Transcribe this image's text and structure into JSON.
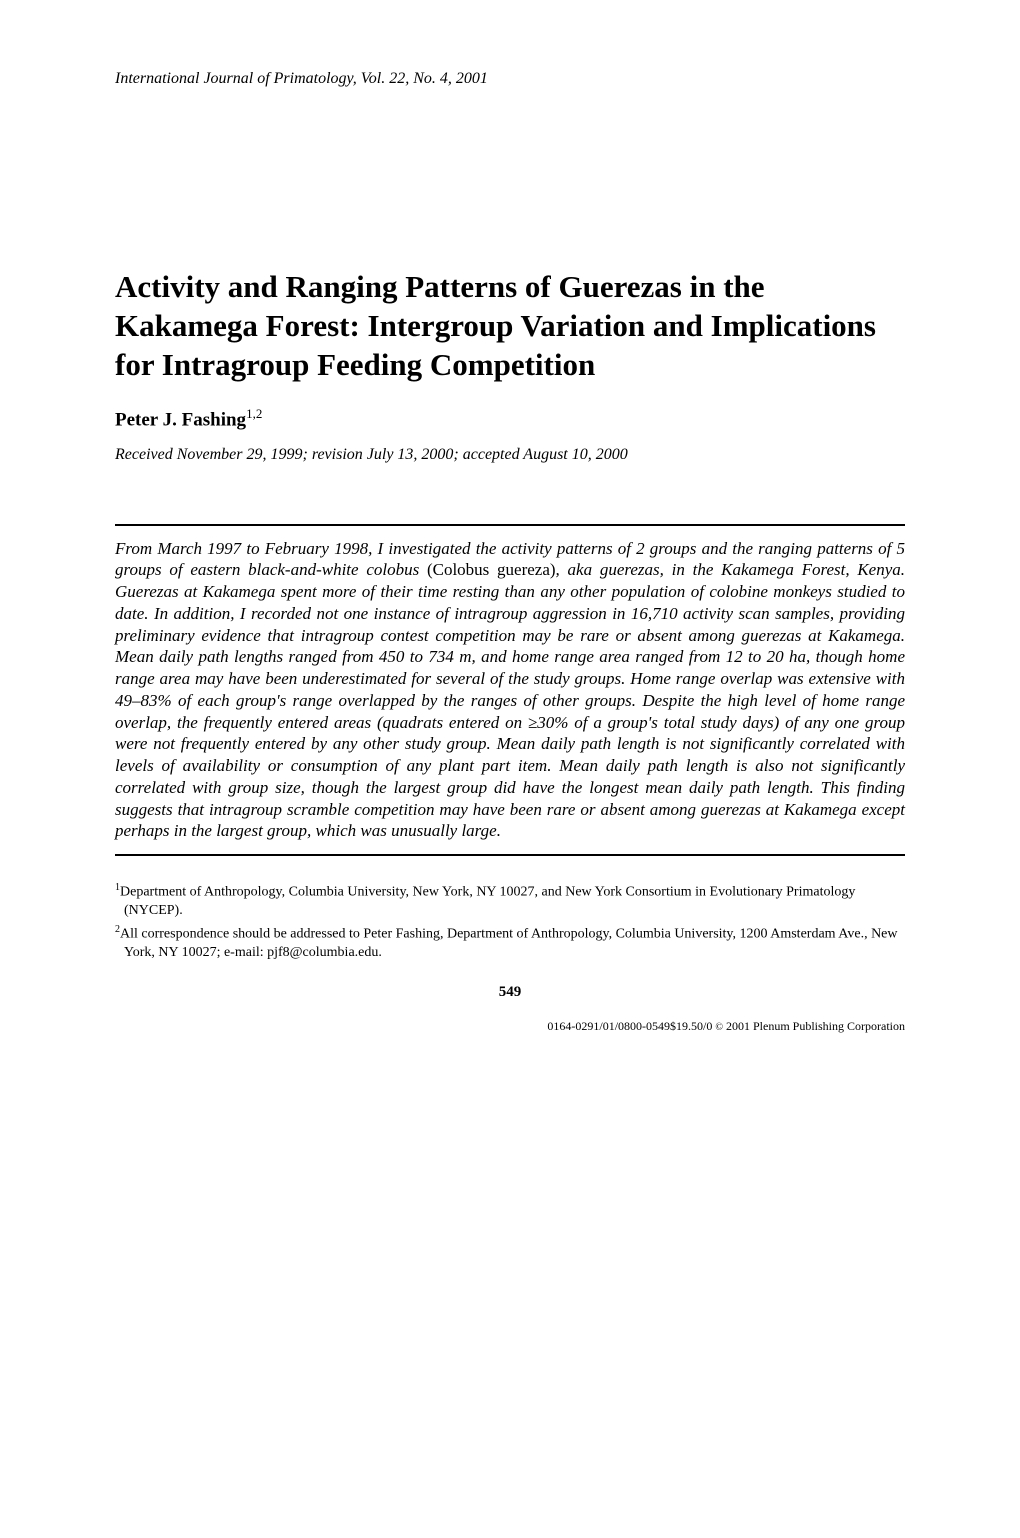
{
  "journal_header": "International Journal of Primatology, Vol. 22, No. 4, 2001",
  "title": "Activity and Ranging Patterns of Guerezas in the Kakamega Forest: Intergroup Variation and Implications for Intragroup Feeding Competition",
  "author": {
    "name": "Peter J. Fashing",
    "affiliations": "1,2"
  },
  "received": "Received November 29, 1999; revision July 13, 2000; accepted August 10, 2000",
  "abstract": {
    "part1": "From March 1997 to February 1998, I investigated the activity patterns of 2 groups and the ranging patterns of 5 groups of eastern black-and-white colobus ",
    "species": "(Colobus guereza)",
    "part2": ", aka guerezas, in the Kakamega Forest, Kenya. Guerezas at Kakamega spent more of their time resting than any other population of colobine monkeys studied to date. In addition, I recorded not one instance of intragroup aggression in 16,710 activity scan samples, providing preliminary evidence that intragroup contest competition may be rare or absent among guerezas at Kakamega. Mean daily path lengths ranged from 450 to 734 m, and home range area ranged from 12 to 20 ha, though home range area may have been underestimated for several of the study groups. Home range overlap was extensive with 49–83% of each group's range overlapped by the ranges of other groups. Despite the high level of home range overlap, the frequently entered areas (quadrats entered on ≥30% of a group's total study days) of any one group were not frequently entered by any other study group. Mean daily path length is not significantly correlated with levels of availability or consumption of any plant part item. Mean daily path length is also not significantly correlated with group size, though the largest group did have the longest mean daily path length. This finding suggests that intragroup scramble competition may have been rare or absent among guerezas at Kakamega except perhaps in the largest group, which was unusually large."
  },
  "footnotes": {
    "note1": {
      "num": "1",
      "text": "Department of Anthropology, Columbia University, New York, NY 10027, and New York Consortium in Evolutionary Primatology (NYCEP)."
    },
    "note2": {
      "num": "2",
      "text": "All correspondence should be addressed to Peter Fashing, Department of Anthropology, Columbia University, 1200 Amsterdam Ave., New York, NY 10027; e-mail: pjf8@columbia.edu."
    }
  },
  "page_number": "549",
  "copyright": {
    "isbn": "0164-0291/01/0800-0549$19.50/0 ",
    "symbol": "©",
    "text": " 2001 Plenum Publishing Corporation"
  }
}
